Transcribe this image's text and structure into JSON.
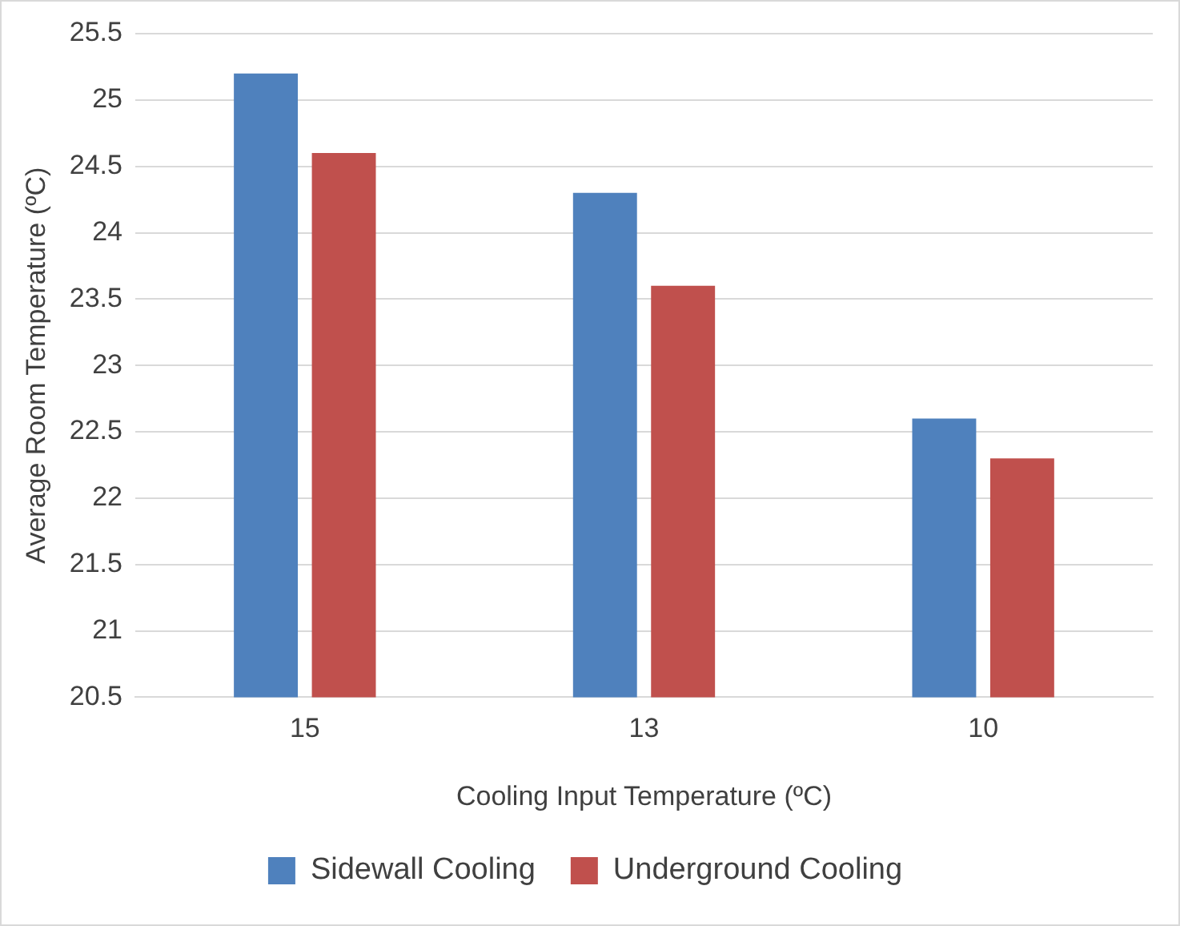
{
  "chart_data": {
    "type": "bar",
    "xlabel": "Cooling Input Temperature (ºC)",
    "ylabel": "Average Room Temperature (ºC)",
    "categories": [
      "15",
      "13",
      "10"
    ],
    "series": [
      {
        "name": "Sidewall Cooling",
        "color": "#4f81bd",
        "values": [
          25.2,
          24.3,
          22.6
        ]
      },
      {
        "name": "Underground Cooling",
        "color": "#c0504d",
        "values": [
          24.6,
          23.6,
          22.3
        ]
      }
    ],
    "ylim": [
      20.5,
      25.5
    ],
    "yticks": [
      20.5,
      21,
      21.5,
      22,
      22.5,
      23,
      23.5,
      24,
      24.5,
      25,
      25.5
    ],
    "grid": "y",
    "legend": "bottom"
  }
}
